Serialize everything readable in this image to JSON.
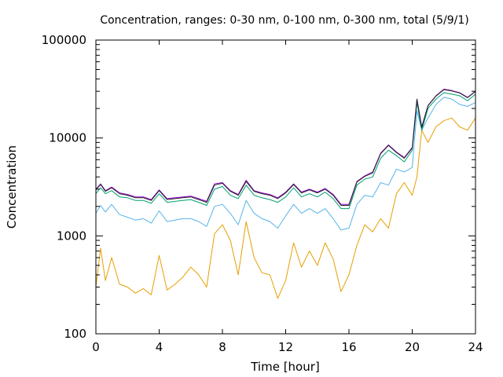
{
  "chart_data": {
    "type": "line",
    "title": "Concentration, ranges: 0-30 nm, 0-100 nm, 0-300 nm, total (5/9/1)",
    "xlabel": "Time [hour]",
    "ylabel": "Concentration",
    "xlim": [
      0,
      24
    ],
    "ylim": [
      100,
      100000
    ],
    "yscale": "log",
    "grid": false,
    "legend": "none",
    "x_ticks": [
      0,
      4,
      8,
      12,
      16,
      20,
      24
    ],
    "x_tick_labels": [
      "0",
      "4",
      "8",
      "12",
      "16",
      "20",
      "24"
    ],
    "y_ticks": [
      100,
      1000,
      10000,
      100000
    ],
    "y_tick_labels": [
      "100",
      "1000",
      "10000",
      "100000"
    ],
    "series": [
      {
        "color": "#e69f00",
        "x": [
          0,
          0.3,
          0.6,
          1,
          1.5,
          2,
          2.5,
          3,
          3.5,
          4,
          4.5,
          5,
          5.5,
          6,
          6.5,
          7,
          7.5,
          8,
          8.5,
          9,
          9.5,
          10,
          10.5,
          11,
          11.5,
          12,
          12.5,
          13,
          13.5,
          14,
          14.5,
          15,
          15.5,
          16,
          16.5,
          17,
          17.5,
          18,
          18.5,
          19,
          19.5,
          20,
          20.3,
          20.6,
          21,
          21.5,
          22,
          22.5,
          23,
          23.5,
          24
        ],
        "values": [
          300,
          750,
          350,
          600,
          320,
          300,
          260,
          290,
          250,
          630,
          280,
          320,
          380,
          480,
          400,
          300,
          1050,
          1300,
          900,
          400,
          1400,
          600,
          420,
          400,
          230,
          350,
          850,
          480,
          700,
          500,
          850,
          580,
          270,
          400,
          800,
          1300,
          1100,
          1500,
          1200,
          2700,
          3500,
          2600,
          4000,
          12000,
          9000,
          13000,
          15000,
          16000,
          13000,
          12000,
          16000
        ]
      },
      {
        "color": "#56b4e9",
        "x": [
          0,
          0.3,
          0.6,
          1,
          1.5,
          2,
          2.5,
          3,
          3.5,
          4,
          4.5,
          5,
          5.5,
          6,
          6.5,
          7,
          7.5,
          8,
          8.5,
          9,
          9.5,
          10,
          10.5,
          11,
          11.5,
          12,
          12.5,
          13,
          13.5,
          14,
          14.5,
          15,
          15.5,
          16,
          16.5,
          17,
          17.5,
          18,
          18.5,
          19,
          19.5,
          20,
          20.3,
          20.6,
          21,
          21.5,
          22,
          22.5,
          23,
          23.5,
          24
        ],
        "values": [
          1700,
          2050,
          1750,
          2100,
          1650,
          1550,
          1450,
          1500,
          1350,
          1800,
          1400,
          1450,
          1500,
          1500,
          1400,
          1250,
          2000,
          2100,
          1700,
          1300,
          2300,
          1700,
          1500,
          1400,
          1200,
          1600,
          2100,
          1700,
          1900,
          1700,
          1900,
          1500,
          1150,
          1200,
          2100,
          2600,
          2500,
          3500,
          3300,
          4800,
          4500,
          5000,
          19000,
          12000,
          16000,
          22000,
          26000,
          25000,
          22000,
          21000,
          23000
        ]
      },
      {
        "color": "#009e73",
        "x": [
          0,
          0.3,
          0.6,
          1,
          1.5,
          2,
          2.5,
          3,
          3.5,
          4,
          4.5,
          5,
          5.5,
          6,
          6.5,
          7,
          7.5,
          8,
          8.5,
          9,
          9.5,
          10,
          10.5,
          11,
          11.5,
          12,
          12.5,
          13,
          13.5,
          14,
          14.5,
          15,
          15.5,
          16,
          16.5,
          17,
          17.5,
          18,
          18.5,
          19,
          19.5,
          20,
          20.3,
          20.6,
          21,
          21.5,
          22,
          22.5,
          23,
          23.5,
          24
        ],
        "values": [
          2700,
          3100,
          2700,
          2900,
          2500,
          2450,
          2300,
          2300,
          2150,
          2700,
          2200,
          2250,
          2300,
          2350,
          2200,
          2050,
          3000,
          3200,
          2600,
          2400,
          3300,
          2600,
          2450,
          2350,
          2200,
          2500,
          3100,
          2500,
          2700,
          2500,
          2800,
          2400,
          1900,
          1900,
          3300,
          3800,
          4000,
          6200,
          7500,
          6600,
          5700,
          7500,
          23000,
          12000,
          20000,
          25000,
          29000,
          28000,
          27000,
          24000,
          28000
        ]
      },
      {
        "color": "#9400d3",
        "x": [
          0,
          0.3,
          0.6,
          1,
          1.5,
          2,
          2.5,
          3,
          3.5,
          4,
          4.5,
          5,
          5.5,
          6,
          6.5,
          7,
          7.5,
          8,
          8.5,
          9,
          9.5,
          10,
          10.5,
          11,
          11.5,
          12,
          12.5,
          13,
          13.5,
          14,
          14.5,
          15,
          15.5,
          16,
          16.5,
          17,
          17.5,
          18,
          18.5,
          19,
          19.5,
          20,
          20.3,
          20.6,
          21,
          21.5,
          22,
          22.5,
          23,
          23.5,
          24
        ],
        "values": [
          3000,
          3400,
          2900,
          3150,
          2750,
          2650,
          2500,
          2500,
          2350,
          2950,
          2400,
          2450,
          2500,
          2550,
          2400,
          2250,
          3400,
          3500,
          2900,
          2650,
          3700,
          2900,
          2750,
          2650,
          2450,
          2800,
          3400,
          2800,
          3000,
          2800,
          3050,
          2650,
          2100,
          2100,
          3600,
          4100,
          4500,
          7000,
          8500,
          7200,
          6300,
          8000,
          25000,
          13000,
          21500,
          27000,
          31500,
          30500,
          29000,
          26000,
          30000
        ]
      },
      {
        "color": "#222222",
        "x": [
          0,
          0.3,
          0.6,
          1,
          1.5,
          2,
          2.5,
          3,
          3.5,
          4,
          4.5,
          5,
          5.5,
          6,
          6.5,
          7,
          7.5,
          8,
          8.5,
          9,
          9.5,
          10,
          10.5,
          11,
          11.5,
          12,
          12.5,
          13,
          13.5,
          14,
          14.5,
          15,
          15.5,
          16,
          16.5,
          17,
          17.5,
          18,
          18.5,
          19,
          19.5,
          20,
          20.3,
          20.6,
          21,
          21.5,
          22,
          22.5,
          23,
          23.5,
          24
        ],
        "values": [
          2950,
          3350,
          2850,
          3100,
          2700,
          2600,
          2450,
          2450,
          2300,
          2900,
          2350,
          2400,
          2450,
          2500,
          2350,
          2200,
          3300,
          3450,
          2850,
          2600,
          3600,
          2850,
          2700,
          2600,
          2400,
          2750,
          3350,
          2750,
          2950,
          2750,
          3000,
          2600,
          2050,
          2050,
          3550,
          4050,
          4400,
          6900,
          8400,
          7100,
          6200,
          7900,
          24800,
          12800,
          21300,
          26800,
          31200,
          30200,
          28800,
          25800,
          29800
        ]
      }
    ]
  }
}
